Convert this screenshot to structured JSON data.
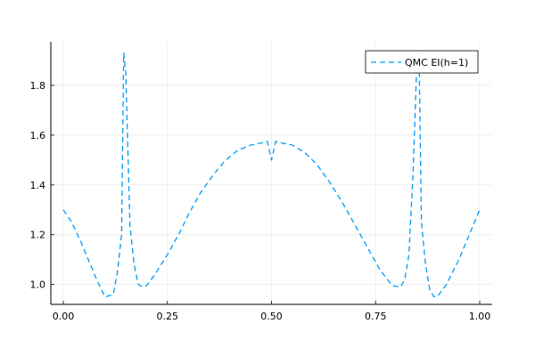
{
  "chart_data": {
    "type": "line",
    "title": "",
    "xlabel": "",
    "ylabel": "",
    "xlim": [
      -0.03,
      1.03
    ],
    "ylim": [
      0.92,
      1.975
    ],
    "x_ticks": [
      0.0,
      0.25,
      0.5,
      0.75,
      1.0
    ],
    "x_tick_labels": [
      "0.00",
      "0.25",
      "0.50",
      "0.75",
      "1.00"
    ],
    "y_ticks": [
      1.0,
      1.2,
      1.4,
      1.6,
      1.8
    ],
    "y_tick_labels": [
      "1.0",
      "1.2",
      "1.4",
      "1.6",
      "1.8"
    ],
    "grid": true,
    "legend_position": "top-right",
    "series": [
      {
        "name": "QMC EI(h=1)",
        "color": "#009AFA",
        "dash": "dashed",
        "x": [
          0.0,
          0.02,
          0.04,
          0.06,
          0.08,
          0.1,
          0.12,
          0.13,
          0.14,
          0.145,
          0.15,
          0.16,
          0.17,
          0.18,
          0.19,
          0.2,
          0.22,
          0.25,
          0.28,
          0.3,
          0.33,
          0.36,
          0.39,
          0.42,
          0.45,
          0.48,
          0.49,
          0.5,
          0.51,
          0.52,
          0.55,
          0.58,
          0.61,
          0.64,
          0.67,
          0.7,
          0.73,
          0.76,
          0.79,
          0.81,
          0.82,
          0.83,
          0.84,
          0.85,
          0.855,
          0.86,
          0.87,
          0.88,
          0.89,
          0.9,
          0.92,
          0.95,
          0.98,
          1.0
        ],
        "y": [
          1.3,
          1.25,
          1.18,
          1.1,
          1.02,
          0.95,
          0.96,
          1.05,
          1.2,
          1.93,
          1.85,
          1.24,
          1.08,
          1.0,
          0.99,
          0.995,
          1.04,
          1.12,
          1.21,
          1.28,
          1.37,
          1.44,
          1.5,
          1.54,
          1.56,
          1.57,
          1.575,
          1.5,
          1.575,
          1.57,
          1.56,
          1.53,
          1.48,
          1.41,
          1.33,
          1.24,
          1.15,
          1.06,
          0.995,
          0.99,
          1.02,
          1.12,
          1.45,
          1.94,
          1.85,
          1.25,
          1.08,
          0.98,
          0.95,
          0.955,
          1.0,
          1.1,
          1.22,
          1.3
        ]
      }
    ]
  }
}
